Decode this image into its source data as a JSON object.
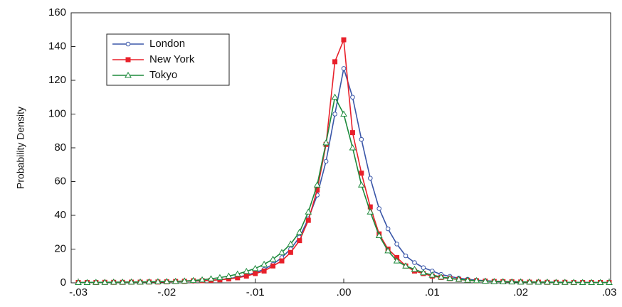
{
  "chart_data": {
    "type": "line",
    "y_label": "Probability Density",
    "x": [
      -0.03,
      -0.029,
      -0.028,
      -0.027,
      -0.026,
      -0.025,
      -0.024,
      -0.023,
      -0.022,
      -0.021,
      -0.02,
      -0.019,
      -0.018,
      -0.017,
      -0.016,
      -0.015,
      -0.014,
      -0.013,
      -0.012,
      -0.011,
      -0.01,
      -0.009,
      -0.008,
      -0.007,
      -0.006,
      -0.005,
      -0.004,
      -0.003,
      -0.002,
      -0.001,
      0.0,
      0.001,
      0.002,
      0.003,
      0.004,
      0.005,
      0.006,
      0.007,
      0.008,
      0.009,
      0.01,
      0.011,
      0.012,
      0.013,
      0.014,
      0.015,
      0.016,
      0.017,
      0.018,
      0.019,
      0.02,
      0.021,
      0.022,
      0.023,
      0.024,
      0.025,
      0.026,
      0.027,
      0.028,
      0.029,
      0.03
    ],
    "series": [
      {
        "name": "London",
        "color": "#3a56a8",
        "marker": "circle",
        "values": [
          0.2,
          0.2,
          0.3,
          0.3,
          0.3,
          0.4,
          0.4,
          0.5,
          0.5,
          0.6,
          0.7,
          0.8,
          0.9,
          1.0,
          1.2,
          1.5,
          1.9,
          2.5,
          3.3,
          4.5,
          6,
          8,
          11,
          15,
          20,
          27,
          38,
          52,
          72,
          100,
          127,
          110,
          85,
          62,
          44,
          32,
          23,
          16,
          12,
          9,
          7,
          5,
          3.8,
          2.8,
          2.1,
          1.6,
          1.3,
          1.0,
          0.8,
          0.7,
          0.6,
          0.5,
          0.5,
          0.4,
          0.4,
          0.3,
          0.3,
          0.3,
          0.2,
          0.2,
          0.2
        ]
      },
      {
        "name": "New York",
        "color": "#e8202a",
        "marker": "square",
        "values": [
          0.2,
          0.2,
          0.2,
          0.3,
          0.3,
          0.3,
          0.4,
          0.4,
          0.5,
          0.5,
          0.6,
          0.8,
          0.9,
          1.2,
          1.3,
          1.5,
          1.8,
          2.3,
          3.0,
          4.0,
          5.5,
          7,
          10,
          13,
          18,
          25,
          37,
          55,
          82,
          131,
          144,
          89,
          65,
          45,
          29,
          20,
          15,
          10,
          7,
          5.5,
          4,
          3.2,
          2.5,
          2.0,
          1.5,
          1.2,
          1.0,
          0.8,
          0.7,
          0.6,
          0.5,
          0.4,
          0.4,
          0.3,
          0.3,
          0.3,
          0.2,
          0.2,
          0.2,
          0.2,
          0.2
        ]
      },
      {
        "name": "Tokyo",
        "color": "#1d8a3c",
        "marker": "triangle",
        "values": [
          0.2,
          0.2,
          0.3,
          0.3,
          0.4,
          0.4,
          0.5,
          0.5,
          0.6,
          0.7,
          0.8,
          0.9,
          1.1,
          1.4,
          1.8,
          2.4,
          3.1,
          4.0,
          5.2,
          6.8,
          8.5,
          11,
          14,
          18,
          23,
          30,
          42,
          58,
          83,
          110,
          100,
          80,
          58,
          42,
          28,
          19,
          13,
          10,
          8,
          6,
          4.6,
          3.5,
          2.7,
          2.1,
          1.6,
          1.3,
          1.0,
          0.8,
          0.7,
          0.6,
          0.5,
          0.5,
          0.4,
          0.4,
          0.3,
          0.3,
          0.3,
          0.2,
          0.2,
          0.2,
          0.2
        ]
      }
    ],
    "xlim": [
      -0.03,
      0.03
    ],
    "xticks": [
      {
        "value": -0.03,
        "label": "-.03"
      },
      {
        "value": -0.02,
        "label": "-.02"
      },
      {
        "value": -0.01,
        "label": "-.01"
      },
      {
        "value": 0,
        "label": ".00"
      },
      {
        "value": 0.01,
        "label": ".01"
      },
      {
        "value": 0.02,
        "label": ".02"
      },
      {
        "value": 0.03,
        "label": ".03"
      }
    ],
    "ylim": [
      0,
      160
    ],
    "yticks": [
      0,
      20,
      40,
      60,
      80,
      100,
      120,
      140,
      160
    ],
    "legend": "top-left",
    "grid": false
  }
}
